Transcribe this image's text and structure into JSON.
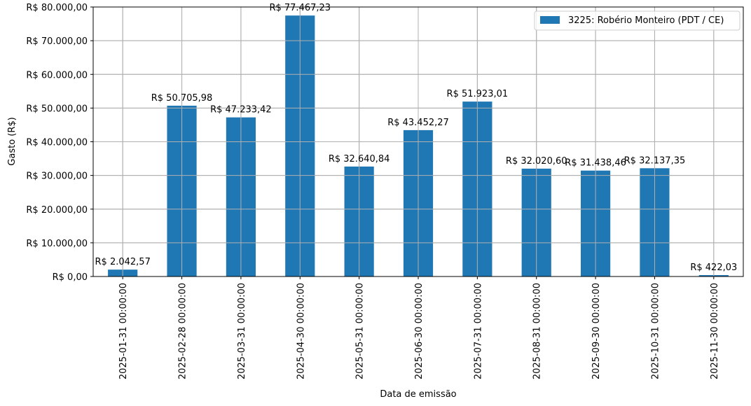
{
  "chart_data": {
    "type": "bar",
    "categories": [
      "2025-01-31 00:00:00",
      "2025-02-28 00:00:00",
      "2025-03-31 00:00:00",
      "2025-04-30 00:00:00",
      "2025-05-31 00:00:00",
      "2025-06-30 00:00:00",
      "2025-07-31 00:00:00",
      "2025-08-31 00:00:00",
      "2025-09-30 00:00:00",
      "2025-10-31 00:00:00",
      "2025-11-30 00:00:00"
    ],
    "series": [
      {
        "name": "3225: Robério Monteiro (PDT / CE)",
        "color": "#1f77b4",
        "values": [
          2042.57,
          50705.98,
          47233.42,
          77467.23,
          32640.84,
          43452.27,
          51923.01,
          32020.6,
          31438.46,
          32137.35,
          422.03
        ],
        "labels": [
          "R$ 2.042,57",
          "R$ 50.705,98",
          "R$ 47.233,42",
          "R$ 77.467,23",
          "R$ 32.640,84",
          "R$ 43.452,27",
          "R$ 51.923,01",
          "R$ 32.020,60",
          "R$ 31.438,46",
          "R$ 32.137,35",
          "R$ 422,03"
        ]
      }
    ],
    "xlabel": "Data de emissão",
    "ylabel": "Gasto (R$)",
    "ylim": [
      0,
      80000
    ],
    "yticks": [
      0,
      10000,
      20000,
      30000,
      40000,
      50000,
      60000,
      70000,
      80000
    ],
    "ytick_labels": [
      "R$ 0,00",
      "R$ 10.000,00",
      "R$ 20.000,00",
      "R$ 30.000,00",
      "R$ 40.000,00",
      "R$ 50.000,00",
      "R$ 60.000,00",
      "R$ 70.000,00",
      "R$ 80.000,00"
    ],
    "grid": true,
    "legend_position": "top-right"
  }
}
